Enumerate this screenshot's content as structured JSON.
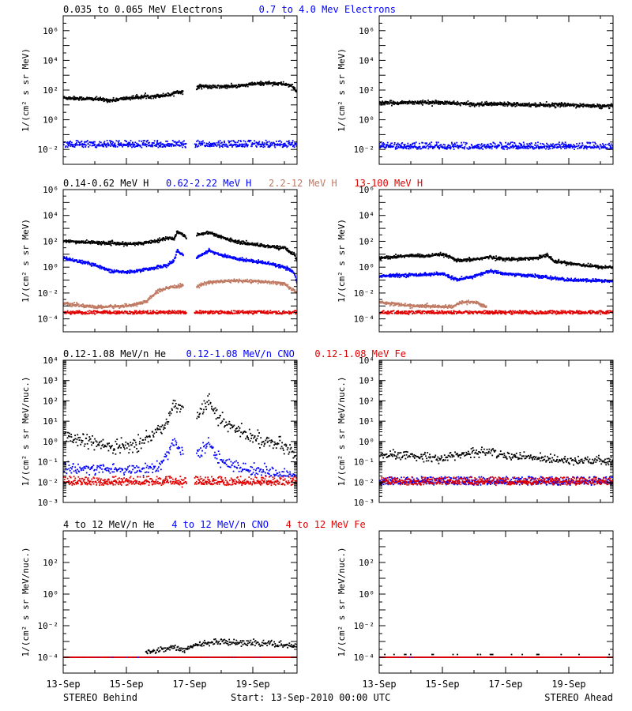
{
  "figure": {
    "footer_left": "STEREO Behind",
    "footer_center": "Start: 13-Sep-2010 00:00 UTC",
    "footer_right": "STEREO Ahead",
    "x_ticks": [
      "13-Sep",
      "15-Sep",
      "17-Sep",
      "19-Sep"
    ],
    "x_days": [
      0,
      2,
      4,
      6
    ],
    "x_range": [
      0,
      7.4
    ]
  },
  "chart_data": [
    {
      "type": "scatter",
      "row": 0,
      "spacecraft": "STEREO Behind",
      "ylabel": "1/(cm² s sr MeV)",
      "yscale": "log",
      "ylim_exp": [
        -3,
        7
      ],
      "yticks_exp": [
        -2,
        0,
        2,
        4,
        6
      ],
      "legend": [
        {
          "name": "0.035 to 0.065 MeV Electrons",
          "color": "#000000"
        },
        {
          "name": "0.7 to 4.0 Mev Electrons",
          "color": "#0000ff"
        }
      ],
      "series": [
        {
          "name": "0.035 to 0.065 MeV Electrons",
          "color": "#000000",
          "style": "dense",
          "points": [
            [
              0,
              30
            ],
            [
              1,
              25
            ],
            [
              1.5,
              20
            ],
            [
              2,
              28
            ],
            [
              2.5,
              35
            ],
            [
              3,
              40
            ],
            [
              3.4,
              50
            ],
            [
              3.6,
              80
            ],
            [
              3.8,
              70
            ]
          ],
          "points2": [
            [
              4.2,
              100
            ],
            [
              4.3,
              200
            ],
            [
              4.6,
              160
            ],
            [
              5.5,
              180
            ],
            [
              6,
              250
            ],
            [
              6.5,
              300
            ],
            [
              7,
              250
            ],
            [
              7.2,
              200
            ],
            [
              7.4,
              80
            ]
          ]
        },
        {
          "name": "0.7 to 4.0 Mev Electrons",
          "color": "#0000ff",
          "style": "noisy",
          "value": 0.02,
          "spread": 1.5
        }
      ],
      "gaps": [
        [
          3.9,
          4.15
        ]
      ]
    },
    {
      "type": "scatter",
      "row": 0,
      "spacecraft": "STEREO Ahead",
      "ylabel": "1/(cm² s sr MeV)",
      "yscale": "log",
      "ylim_exp": [
        -3,
        7
      ],
      "yticks_exp": [
        -2,
        0,
        2,
        4,
        6
      ],
      "series": [
        {
          "name": "0.035 to 0.065 MeV Electrons",
          "color": "#000000",
          "style": "dense",
          "points": [
            [
              0,
              13
            ],
            [
              1,
              15
            ],
            [
              2,
              14
            ],
            [
              3,
              11
            ],
            [
              4,
              12
            ],
            [
              5,
              10
            ],
            [
              6,
              10
            ],
            [
              7,
              8
            ],
            [
              7.4,
              8
            ]
          ]
        },
        {
          "name": "0.7 to 4.0 Mev Electrons",
          "color": "#0000ff",
          "style": "noisy",
          "value": 0.015,
          "spread": 1.5
        }
      ],
      "gaps": []
    },
    {
      "type": "scatter",
      "row": 1,
      "spacecraft": "STEREO Behind",
      "ylabel": "1/(cm² s sr MeV)",
      "yscale": "log",
      "ylim_exp": [
        -5,
        6
      ],
      "yticks_exp": [
        -4,
        -2,
        0,
        2,
        4,
        6
      ],
      "legend": [
        {
          "name": "0.14-0.62 MeV H",
          "color": "#000000"
        },
        {
          "name": "0.62-2.22 MeV H",
          "color": "#0000ff"
        },
        {
          "name": "2.2-12 MeV H",
          "color": "#c07a63"
        },
        {
          "name": "13-100 MeV H",
          "color": "#e00000"
        }
      ],
      "series": [
        {
          "name": "0.14-0.62 MeV H",
          "color": "#000000",
          "style": "dense",
          "points": [
            [
              0,
              100
            ],
            [
              1,
              80
            ],
            [
              2,
              60
            ],
            [
              2.5,
              70
            ],
            [
              3,
              120
            ],
            [
              3.3,
              180
            ],
            [
              3.5,
              150
            ],
            [
              3.6,
              600
            ],
            [
              3.8,
              300
            ],
            [
              3.9,
              200
            ]
          ],
          "points2": [
            [
              4.2,
              300
            ],
            [
              4.6,
              500
            ],
            [
              5,
              200
            ],
            [
              5.6,
              80
            ],
            [
              6,
              60
            ],
            [
              6.5,
              40
            ],
            [
              7,
              30
            ],
            [
              7.3,
              10
            ],
            [
              7.4,
              3
            ]
          ]
        },
        {
          "name": "0.62-2.22 MeV H",
          "color": "#0000ff",
          "style": "dense",
          "points": [
            [
              0,
              5
            ],
            [
              1,
              1.5
            ],
            [
              1.5,
              0.5
            ],
            [
              2,
              0.4
            ],
            [
              2.5,
              0.6
            ],
            [
              3,
              1
            ],
            [
              3.3,
              1.5
            ],
            [
              3.5,
              3
            ],
            [
              3.6,
              20
            ],
            [
              3.8,
              8
            ]
          ],
          "points2": [
            [
              4.2,
              5
            ],
            [
              4.6,
              20
            ],
            [
              5,
              8
            ],
            [
              5.6,
              4
            ],
            [
              6,
              3
            ],
            [
              6.5,
              2
            ],
            [
              7,
              1
            ],
            [
              7.3,
              0.4
            ],
            [
              7.4,
              0.05
            ]
          ]
        },
        {
          "name": "2.2-12 MeV H",
          "color": "#c07a63",
          "style": "dense",
          "points": [
            [
              0,
              0.0015
            ],
            [
              1,
              0.0008
            ],
            [
              2,
              0.001
            ],
            [
              2.6,
              0.002
            ],
            [
              3,
              0.015
            ],
            [
              3.5,
              0.03
            ],
            [
              3.8,
              0.04
            ]
          ],
          "points2": [
            [
              4.2,
              0.03
            ],
            [
              4.6,
              0.07
            ],
            [
              5.5,
              0.09
            ],
            [
              6.5,
              0.07
            ],
            [
              7,
              0.05
            ],
            [
              7.4,
              0.01
            ]
          ]
        },
        {
          "name": "13-100 MeV H",
          "color": "#e00000",
          "style": "noisy",
          "value": 0.0003,
          "spread": 0.6
        }
      ],
      "gaps": [
        [
          3.9,
          4.15
        ]
      ]
    },
    {
      "type": "scatter",
      "row": 1,
      "spacecraft": "STEREO Ahead",
      "ylabel": "1/(cm² s sr MeV)",
      "yscale": "log",
      "ylim_exp": [
        -5,
        6
      ],
      "yticks_exp": [
        -4,
        -2,
        0,
        2,
        4,
        6
      ],
      "series": [
        {
          "name": "0.14-0.62 MeV H",
          "color": "#000000",
          "style": "dense",
          "points": [
            [
              0,
              5
            ],
            [
              1,
              8
            ],
            [
              1.5,
              7
            ],
            [
              2,
              10
            ],
            [
              2.5,
              3
            ],
            [
              3,
              4
            ],
            [
              3.5,
              6
            ],
            [
              4,
              4
            ],
            [
              5,
              5
            ],
            [
              5.3,
              10
            ],
            [
              5.5,
              3
            ],
            [
              6,
              2
            ],
            [
              7,
              1
            ],
            [
              7.4,
              1
            ]
          ]
        },
        {
          "name": "0.62-2.22 MeV H",
          "color": "#0000ff",
          "style": "dense",
          "points": [
            [
              0,
              0.2
            ],
            [
              1,
              0.25
            ],
            [
              2,
              0.3
            ],
            [
              2.5,
              0.1
            ],
            [
              3,
              0.2
            ],
            [
              3.5,
              0.5
            ],
            [
              4,
              0.3
            ],
            [
              5,
              0.2
            ],
            [
              6,
              0.1
            ],
            [
              7,
              0.09
            ],
            [
              7.4,
              0.08
            ]
          ]
        },
        {
          "name": "2.2-12 MeV H",
          "color": "#c07a63",
          "style": "dense",
          "points": [
            [
              0,
              0.002
            ],
            [
              1,
              0.001
            ],
            [
              2,
              0.0009
            ],
            [
              2.3,
              0.0008
            ],
            [
              2.6,
              0.002
            ],
            [
              3,
              0.002
            ],
            [
              3.4,
              0.0008
            ]
          ]
        },
        {
          "name": "13-100 MeV H",
          "color": "#e00000",
          "style": "noisy",
          "value": 0.0003,
          "spread": 0.6
        }
      ],
      "gaps": []
    },
    {
      "type": "scatter",
      "row": 2,
      "spacecraft": "STEREO Behind",
      "ylabel": "1/(cm² s sr MeV/nuc.)",
      "yscale": "log",
      "ylim_exp": [
        -3,
        4
      ],
      "yticks_exp": [
        -3,
        -2,
        -1,
        0,
        1,
        2,
        3,
        4
      ],
      "legend": [
        {
          "name": "0.12-1.08 MeV/n He",
          "color": "#000000"
        },
        {
          "name": "0.12-1.08 MeV/n CNO",
          "color": "#0000ff"
        },
        {
          "name": "0.12-1.08 MeV Fe",
          "color": "#e00000"
        }
      ],
      "series": [
        {
          "name": "0.12-1.08 MeV/n He",
          "color": "#000000",
          "style": "noisy-curve",
          "points": [
            [
              0,
              2
            ],
            [
              1,
              0.8
            ],
            [
              1.5,
              0.5
            ],
            [
              2,
              0.6
            ],
            [
              2.5,
              1
            ],
            [
              3,
              3
            ],
            [
              3.3,
              10
            ],
            [
              3.5,
              100
            ],
            [
              3.8,
              30
            ]
          ],
          "points2": [
            [
              4.2,
              20
            ],
            [
              4.6,
              100
            ],
            [
              5,
              10
            ],
            [
              5.6,
              3
            ],
            [
              6,
              1.5
            ],
            [
              6.5,
              1
            ],
            [
              7,
              0.5
            ],
            [
              7.4,
              0.2
            ]
          ],
          "spread": 3
        },
        {
          "name": "0.12-1.08 MeV/n CNO",
          "color": "#0000ff",
          "style": "noisy-curve",
          "points": [
            [
              0,
              0.05
            ],
            [
              2,
              0.04
            ],
            [
              3,
              0.05
            ],
            [
              3.3,
              0.3
            ],
            [
              3.5,
              1
            ],
            [
              3.8,
              0.2
            ]
          ],
          "points2": [
            [
              4.2,
              0.2
            ],
            [
              4.6,
              0.8
            ],
            [
              5,
              0.1
            ],
            [
              5.6,
              0.05
            ],
            [
              7.4,
              0.02
            ]
          ],
          "spread": 2.5,
          "floor": 0.02
        },
        {
          "name": "0.12-1.08 MeV Fe",
          "color": "#e00000",
          "style": "noisy",
          "value": 0.01,
          "spread": 1.3
        }
      ],
      "gaps": [
        [
          3.9,
          4.15
        ]
      ]
    },
    {
      "type": "scatter",
      "row": 2,
      "spacecraft": "STEREO Ahead",
      "ylabel": "1/(cm² s sr MeV/nuc.)",
      "yscale": "log",
      "ylim_exp": [
        -3,
        4
      ],
      "yticks_exp": [
        -3,
        -2,
        -1,
        0,
        1,
        2,
        3,
        4
      ],
      "series": [
        {
          "name": "0.12-1.08 MeV/n He",
          "color": "#000000",
          "style": "noisy-curve",
          "points": [
            [
              0,
              0.2
            ],
            [
              1,
              0.2
            ],
            [
              2,
              0.15
            ],
            [
              3,
              0.3
            ],
            [
              3.5,
              0.3
            ],
            [
              4,
              0.2
            ],
            [
              5,
              0.15
            ],
            [
              7.4,
              0.1
            ]
          ],
          "spread": 2,
          "floor": 0.05
        },
        {
          "name": "0.12-1.08 MeV/n CNO",
          "color": "#0000ff",
          "style": "noisy",
          "value": 0.01,
          "spread": 1.2
        },
        {
          "name": "0.12-1.08 MeV Fe",
          "color": "#e00000",
          "style": "noisy",
          "value": 0.01,
          "spread": 1.1
        }
      ],
      "gaps": []
    },
    {
      "type": "scatter",
      "row": 3,
      "spacecraft": "STEREO Behind",
      "ylabel": "1/(cm² s sr MeV/nuc.)",
      "yscale": "log",
      "ylim_exp": [
        -5,
        4
      ],
      "yticks_exp": [
        -4,
        -2,
        0,
        2
      ],
      "legend": [
        {
          "name": "4 to 12 MeV/n He",
          "color": "#000000"
        },
        {
          "name": "4 to 12 MeV/n CNO",
          "color": "#0000ff"
        },
        {
          "name": "4 to 12 MeV Fe",
          "color": "#e00000"
        }
      ],
      "series": [
        {
          "name": "4 to 12 MeV/n He",
          "color": "#000000",
          "style": "noisy-curve",
          "points": [
            [
              2.6,
              0.0002
            ],
            [
              3,
              0.0003
            ],
            [
              3.5,
              0.0004
            ],
            [
              3.8,
              0.0003
            ],
            [
              4.2,
              0.0006
            ],
            [
              5,
              0.001
            ],
            [
              6,
              0.0008
            ],
            [
              7,
              0.0006
            ],
            [
              7.4,
              0.0005
            ]
          ],
          "spread": 1.8,
          "floor": 0.0001
        },
        {
          "name": "4 to 12 MeV/n CNO",
          "color": "#0000ff",
          "style": "baseline",
          "value": 0.0001
        },
        {
          "name": "4 to 12 MeV Fe",
          "color": "#e00000",
          "style": "baseline",
          "value": 0.0001
        }
      ],
      "gaps": []
    },
    {
      "type": "scatter",
      "row": 3,
      "spacecraft": "STEREO Ahead",
      "ylabel": "1/(cm² s sr MeV/nuc.)",
      "yscale": "log",
      "ylim_exp": [
        -5,
        4
      ],
      "yticks_exp": [
        -4,
        -2,
        0,
        2
      ],
      "series": [
        {
          "name": "4 to 12 MeV/n He",
          "color": "#000000",
          "style": "sparse",
          "value": 0.00015
        },
        {
          "name": "4 to 12 MeV/n CNO",
          "color": "#0000ff",
          "style": "baseline",
          "value": 0.0001
        },
        {
          "name": "4 to 12 MeV Fe",
          "color": "#e00000",
          "style": "baseline",
          "value": 0.0001
        }
      ],
      "gaps": []
    }
  ]
}
